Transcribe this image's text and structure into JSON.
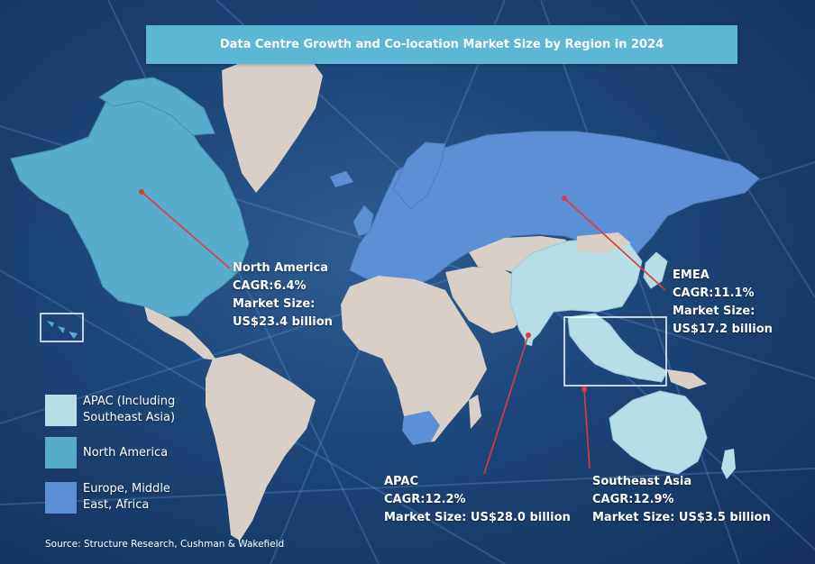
{
  "title": "Data Centre Growth and Co-location Market Size by Region in 2024",
  "colors": {
    "apac": "#b7dde6",
    "north_america": "#56acca",
    "emea": "#5c90d6",
    "other_land": "#d9cfc6",
    "leader_line": "#e0393e",
    "title_bar": "#5bb7d5"
  },
  "callouts": {
    "north_america": {
      "region": "North America",
      "cagr": "CAGR:6.4%",
      "market_label": "Market Size:",
      "market_value": "US$23.4 billion"
    },
    "emea": {
      "region": "EMEA",
      "cagr": "CAGR:11.1%",
      "market_label": "Market Size:",
      "market_value": "US$17.2 billion"
    },
    "apac": {
      "region": "APAC",
      "cagr": "CAGR:12.2%",
      "market_size": "Market Size: US$28.0 billion"
    },
    "southeast_asia": {
      "region": "Southeast Asia",
      "cagr": "CAGR:12.9%",
      "market_size": "Market Size: US$3.5 billion"
    }
  },
  "legend": [
    {
      "key": "apac",
      "line1": "APAC (Including",
      "line2": "Southeast Asia)"
    },
    {
      "key": "north_america",
      "line1": "North America",
      "line2": ""
    },
    {
      "key": "emea",
      "line1": "Europe, Middle",
      "line2": "East, Africa"
    }
  ],
  "source": "Source: Structure Research, Cushman & Wakefield"
}
